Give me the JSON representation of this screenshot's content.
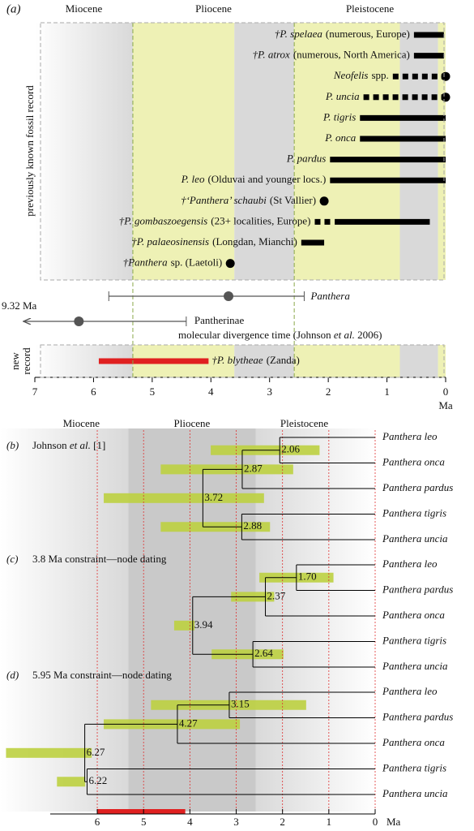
{
  "epoch_boundaries": [
    5.33,
    2.58
  ],
  "panel_a": {
    "label": "(a)",
    "epochs": [
      "Miocene",
      "Pliocene",
      "Pleistocene"
    ],
    "side_label": "previously known fossil record",
    "xlim": [
      7,
      0
    ],
    "xticks": [
      7,
      6,
      5,
      4,
      3,
      2,
      1,
      0
    ],
    "axis_label": "Ma",
    "bands": [
      {
        "range": [
          7,
          5.33
        ],
        "color": "#d9d9d9"
      },
      {
        "range": [
          5.33,
          3.6
        ],
        "color": "#eef1b5"
      },
      {
        "range": [
          3.6,
          2.58
        ],
        "color": "#d9d9d9"
      },
      {
        "range": [
          2.58,
          0.78
        ],
        "color": "#eef1b5"
      },
      {
        "range": [
          0.78,
          0.13
        ],
        "color": "#d9d9d9"
      },
      {
        "range": [
          0.13,
          0
        ],
        "color": "#eef1b5"
      }
    ],
    "taxa": [
      {
        "name": "†P. spelaea",
        "note": "(numerous, Europe)",
        "segments": [
          {
            "range": [
              0.54,
              0.03
            ],
            "style": "solid"
          }
        ]
      },
      {
        "name": "†P. atrox",
        "note": "(numerous, North America)",
        "segments": [
          {
            "range": [
              0.54,
              0.03
            ],
            "style": "solid"
          }
        ]
      },
      {
        "name": "Neofelis",
        "note": "spp.",
        "segments": [
          {
            "range": [
              0.9,
              0.05
            ],
            "style": "dashed"
          }
        ],
        "dot": 0
      },
      {
        "name": "P. uncia",
        "segments": [
          {
            "range": [
              1.4,
              0.05
            ],
            "style": "dashed"
          }
        ],
        "dot": 0
      },
      {
        "name": "P. tigris",
        "segments": [
          {
            "range": [
              1.46,
              0
            ],
            "style": "solid"
          }
        ]
      },
      {
        "name": "P. onca",
        "segments": [
          {
            "range": [
              1.46,
              0
            ],
            "style": "solid"
          }
        ]
      },
      {
        "name": "P. pardus",
        "segments": [
          {
            "range": [
              1.97,
              0
            ],
            "style": "solid"
          }
        ]
      },
      {
        "name": "P. leo",
        "note": "(Olduvai and younger locs.)",
        "segments": [
          {
            "range": [
              1.97,
              0
            ],
            "style": "solid"
          }
        ]
      },
      {
        "name": "†‘Panthera’ schaubi",
        "note": "(St Vallier)",
        "dot": 2.07
      },
      {
        "name": "†P. gombaszoegensis",
        "note": "(23+ localities, Europe)",
        "segments": [
          {
            "range": [
              2.23,
              1.93
            ],
            "style": "dashed"
          },
          {
            "range": [
              1.89,
              0.27
            ],
            "style": "solid"
          }
        ]
      },
      {
        "name": "†P. palaeosinensis",
        "note": "(Longdan, Mianchi)",
        "segments": [
          {
            "range": [
              2.46,
              2.07
            ],
            "style": "solid"
          }
        ]
      },
      {
        "name": "†Panthera",
        "note": "sp. (Laetoli)",
        "dot": 3.67
      }
    ],
    "panthera": {
      "name": "Panthera",
      "range": [
        5.74,
        2.41
      ],
      "estimate": 3.7
    },
    "pantherinae": {
      "name": "Pantherinae",
      "start_label": "9.32 Ma",
      "range": [
        9.32,
        4.42
      ],
      "estimate": 6.25
    },
    "divergence_caption": [
      "molecular divergence time (Johnson ",
      "et al.",
      " 2006)"
    ],
    "new_record": {
      "side_label": [
        "new",
        "record"
      ],
      "name": "†P. blytheae",
      "note": "(Zanda)",
      "range": [
        5.91,
        4.04
      ]
    }
  },
  "panels_bcd": {
    "epochs": [
      "Miocene",
      "Pliocene",
      "Pleistocene"
    ],
    "xlim": [
      8.1,
      0
    ],
    "xticks": [
      6,
      5,
      4,
      3,
      2,
      1,
      0
    ],
    "axis_label": "Ma",
    "fossil_range": [
      6.0,
      4.1
    ],
    "trees": [
      {
        "label": "(b)",
        "caption": [
          "Johnson ",
          "et al.",
          " [1]"
        ],
        "tree": {
          "label": "3.72",
          "age": 3.72,
          "hpd": [
            5.86,
            2.4
          ],
          "children": [
            {
              "label": "2.87",
              "age": 2.87,
              "hpd": [
                4.63,
                1.77
              ],
              "children": [
                {
                  "label": "2.06",
                  "age": 2.06,
                  "hpd": [
                    3.55,
                    1.2
                  ],
                  "children": [
                    {
                      "taxon": "Panthera leo"
                    },
                    {
                      "taxon": "Panthera onca"
                    }
                  ]
                },
                {
                  "taxon": "Panthera pardus"
                }
              ]
            },
            {
              "label": "2.88",
              "age": 2.88,
              "hpd": [
                4.63,
                2.27
              ],
              "children": [
                {
                  "taxon": "Panthera tigris"
                },
                {
                  "taxon": "Panthera uncia"
                }
              ]
            }
          ]
        }
      },
      {
        "label": "(c)",
        "caption": [
          "3.8 Ma constraint—node dating"
        ],
        "tree": {
          "label": "3.94",
          "age": 3.94,
          "hpd": [
            4.34,
            3.9
          ],
          "children": [
            {
              "label": "2.37",
              "age": 2.37,
              "hpd": [
                3.11,
                2.18
              ],
              "children": [
                {
                  "label": "1.70",
                  "age": 1.7,
                  "hpd": [
                    2.5,
                    0.9
                  ],
                  "children": [
                    {
                      "taxon": "Panthera leo"
                    },
                    {
                      "taxon": "Panthera pardus"
                    }
                  ]
                },
                {
                  "taxon": "Panthera onca"
                }
              ]
            },
            {
              "label": "2.64",
              "age": 2.64,
              "hpd": [
                3.53,
                1.98
              ],
              "children": [
                {
                  "taxon": "Panthera tigris"
                },
                {
                  "taxon": "Panthera uncia"
                }
              ]
            }
          ]
        }
      },
      {
        "label": "(d)",
        "caption": [
          "5.95 Ma constraint—node dating"
        ],
        "tree": {
          "label": "6.27",
          "age": 6.27,
          "hpd": [
            7.97,
            6.12
          ],
          "children": [
            {
              "label": "4.27",
              "age": 4.27,
              "hpd": [
                5.86,
                2.92
              ],
              "children": [
                {
                  "label": "3.15",
                  "age": 3.15,
                  "hpd": [
                    4.84,
                    1.49
                  ],
                  "children": [
                    {
                      "taxon": "Panthera leo"
                    },
                    {
                      "taxon": "Panthera pardus"
                    }
                  ]
                },
                {
                  "taxon": "Panthera onca"
                }
              ]
            },
            {
              "label": "6.22",
              "age": 6.22,
              "hpd": [
                6.87,
                6.26
              ],
              "children": [
                {
                  "taxon": "Panthera tigris"
                },
                {
                  "taxon": "Panthera uncia"
                }
              ]
            }
          ]
        }
      }
    ]
  }
}
